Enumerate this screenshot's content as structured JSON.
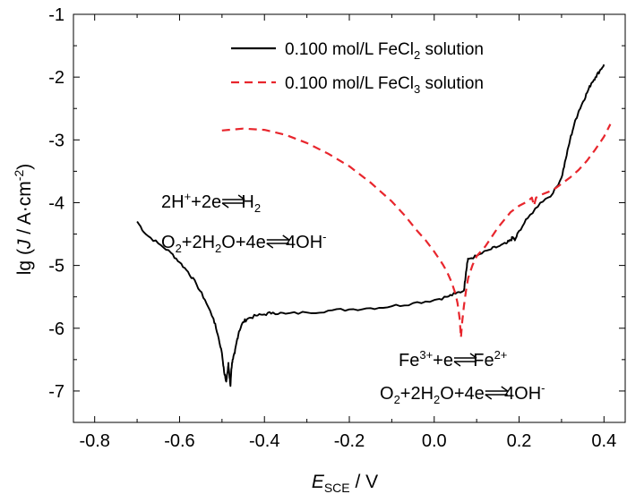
{
  "chart_data": {
    "type": "line",
    "title": "",
    "xlabel": {
      "main": "E",
      "sub": "SCE",
      "unit": " / V"
    },
    "ylabel": {
      "pre": "lg (",
      "var": "J",
      "mid": " / A·cm",
      "sup": "-2",
      "post": ")"
    },
    "xlim": [
      -0.85,
      0.45
    ],
    "ylim": [
      -7.5,
      -1
    ],
    "xticks": [
      -0.8,
      -0.6,
      -0.4,
      -0.2,
      0.0,
      0.2,
      0.4
    ],
    "yticks": [
      -7,
      -6,
      -5,
      -4,
      -3,
      -2,
      -1
    ],
    "xtick_labels": [
      "-0.8",
      "-0.6",
      "-0.4",
      "-0.2",
      "0.0",
      "0.2",
      "0.4"
    ],
    "ytick_labels": [
      "-7",
      "-6",
      "-5",
      "-4",
      "-3",
      "-2",
      "-1"
    ],
    "legend_position": "top-right",
    "series": [
      {
        "name": "0.100 mol/L FeCl2 solution",
        "label": {
          "pre": "0.100 mol/L FeCl",
          "sub": "2",
          "post": " solution"
        },
        "color": "#000000",
        "dash": "solid",
        "x": [
          -0.7,
          -0.68,
          -0.65,
          -0.62,
          -0.6,
          -0.58,
          -0.56,
          -0.54,
          -0.52,
          -0.51,
          -0.5,
          -0.495,
          -0.49,
          -0.487,
          -0.485,
          -0.482,
          -0.48,
          -0.478,
          -0.475,
          -0.47,
          -0.465,
          -0.46,
          -0.45,
          -0.44,
          -0.42,
          -0.4,
          -0.38,
          -0.35,
          -0.3,
          -0.25,
          -0.2,
          -0.15,
          -0.1,
          -0.05,
          0.0,
          0.03,
          0.05,
          0.07,
          0.075,
          0.078,
          0.08,
          0.1,
          0.13,
          0.15,
          0.17,
          0.18,
          0.185,
          0.19,
          0.2,
          0.22,
          0.25,
          0.28,
          0.3,
          0.31,
          0.32,
          0.33,
          0.34,
          0.35,
          0.36,
          0.37,
          0.38,
          0.39,
          0.4
        ],
        "y": [
          -4.3,
          -4.5,
          -4.65,
          -4.8,
          -4.95,
          -5.1,
          -5.3,
          -5.55,
          -5.85,
          -6.1,
          -6.4,
          -6.7,
          -6.85,
          -6.7,
          -6.55,
          -6.8,
          -6.92,
          -6.65,
          -6.5,
          -6.4,
          -6.2,
          -6.05,
          -5.9,
          -5.85,
          -5.8,
          -5.78,
          -5.75,
          -5.77,
          -5.75,
          -5.72,
          -5.7,
          -5.68,
          -5.65,
          -5.6,
          -5.55,
          -5.5,
          -5.45,
          -5.4,
          -5.1,
          -4.95,
          -4.9,
          -4.85,
          -4.75,
          -4.7,
          -4.65,
          -4.6,
          -4.55,
          -4.6,
          -4.45,
          -4.25,
          -4.0,
          -3.85,
          -3.6,
          -3.3,
          -3.0,
          -2.75,
          -2.55,
          -2.4,
          -2.25,
          -2.1,
          -2.0,
          -1.9,
          -1.8
        ]
      },
      {
        "name": "0.100 mol/L FeCl3 solution",
        "label": {
          "pre": "0.100 mol/L FeCl",
          "sub": "3",
          "post": " solution"
        },
        "color": "#e8262d",
        "dash": "dashed",
        "x": [
          -0.5,
          -0.45,
          -0.4,
          -0.35,
          -0.3,
          -0.25,
          -0.2,
          -0.15,
          -0.1,
          -0.07,
          -0.04,
          -0.02,
          0.0,
          0.02,
          0.03,
          0.04,
          0.05,
          0.055,
          0.06,
          0.063,
          0.066,
          0.07,
          0.075,
          0.08,
          0.09,
          0.1,
          0.12,
          0.15,
          0.18,
          0.2,
          0.22,
          0.23,
          0.235,
          0.24,
          0.25,
          0.28,
          0.3,
          0.32,
          0.34,
          0.36,
          0.38,
          0.4,
          0.415
        ],
        "y": [
          -2.85,
          -2.82,
          -2.84,
          -2.92,
          -3.05,
          -3.22,
          -3.42,
          -3.68,
          -3.98,
          -4.2,
          -4.45,
          -4.6,
          -4.78,
          -4.98,
          -5.1,
          -5.25,
          -5.45,
          -5.6,
          -5.85,
          -6.15,
          -5.9,
          -5.65,
          -5.4,
          -5.2,
          -5.0,
          -4.85,
          -4.7,
          -4.4,
          -4.15,
          -4.05,
          -3.98,
          -3.92,
          -4.05,
          -3.92,
          -3.88,
          -3.8,
          -3.7,
          -3.6,
          -3.48,
          -3.33,
          -3.15,
          -2.95,
          -2.75
        ]
      }
    ],
    "annotations": [
      {
        "name": "annotation-h2-reaction",
        "parts": [
          {
            "t": "2H"
          },
          {
            "t": "+",
            "s": "sup"
          },
          {
            "t": "+2e"
          },
          {
            "t": "eq"
          },
          {
            "t": "H"
          },
          {
            "t": "2",
            "s": "sub"
          }
        ]
      },
      {
        "name": "annotation-o2-reaction-left",
        "parts": [
          {
            "t": "O"
          },
          {
            "t": "2",
            "s": "sub"
          },
          {
            "t": "+2H"
          },
          {
            "t": "2",
            "s": "sub"
          },
          {
            "t": "O+4e"
          },
          {
            "t": "eq"
          },
          {
            "t": "4OH"
          },
          {
            "t": "-",
            "s": "sup"
          }
        ]
      },
      {
        "name": "annotation-fe-reaction",
        "parts": [
          {
            "t": "Fe"
          },
          {
            "t": "3+",
            "s": "sup"
          },
          {
            "t": "+e"
          },
          {
            "t": "eq"
          },
          {
            "t": "Fe"
          },
          {
            "t": "2+",
            "s": "sup"
          }
        ]
      },
      {
        "name": "annotation-o2-reaction-right",
        "parts": [
          {
            "t": "O"
          },
          {
            "t": "2",
            "s": "sub"
          },
          {
            "t": "+2H"
          },
          {
            "t": "2",
            "s": "sub"
          },
          {
            "t": "O+4e"
          },
          {
            "t": "eq"
          },
          {
            "t": "4OH"
          },
          {
            "t": "-",
            "s": "sup"
          }
        ]
      }
    ]
  }
}
